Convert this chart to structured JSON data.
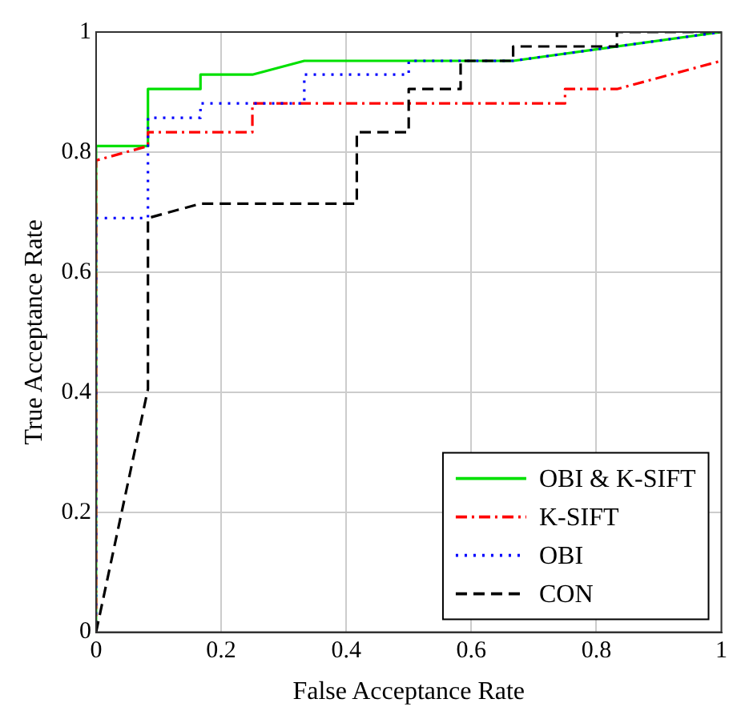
{
  "chart_data": {
    "type": "line",
    "xlabel": "False Acceptance Rate",
    "ylabel": "True Acceptance Rate",
    "xlim": [
      0,
      1
    ],
    "ylim": [
      0,
      1
    ],
    "xticks": [
      0,
      0.2,
      0.4,
      0.6,
      0.8,
      1
    ],
    "yticks": [
      0,
      0.2,
      0.4,
      0.6,
      0.8,
      1
    ],
    "grid": true,
    "legend": "bottom right",
    "marker": "none",
    "series": [
      {
        "name": "OBI & K-SIFT",
        "color": "#00e000",
        "line_style": "solid",
        "x": [
          0,
          0,
          0.083,
          0.083,
          0.167,
          0.167,
          0.25,
          0.333,
          0.667,
          1
        ],
        "values": [
          0,
          0.81,
          0.81,
          0.905,
          0.905,
          0.929,
          0.929,
          0.952,
          0.952,
          1
        ]
      },
      {
        "name": "K-SIFT",
        "color": "#ff0000",
        "line_style": "dashdot",
        "x": [
          0,
          0,
          0.083,
          0.083,
          0.25,
          0.25,
          0.75,
          0.75,
          0.833,
          1
        ],
        "values": [
          0,
          0.786,
          0.81,
          0.833,
          0.833,
          0.881,
          0.881,
          0.905,
          0.905,
          0.952
        ]
      },
      {
        "name": "OBI",
        "color": "#0000ff",
        "line_style": "dotted",
        "x": [
          0,
          0,
          0.083,
          0.083,
          0.167,
          0.167,
          0.333,
          0.333,
          0.5,
          0.5,
          0.667,
          1
        ],
        "values": [
          0,
          0.69,
          0.69,
          0.857,
          0.857,
          0.881,
          0.881,
          0.929,
          0.929,
          0.952,
          0.952,
          1
        ]
      },
      {
        "name": "CON",
        "color": "#000000",
        "line_style": "dashed",
        "x": [
          0,
          0.083,
          0.083,
          0.167,
          0.417,
          0.417,
          0.5,
          0.5,
          0.583,
          0.583,
          0.667,
          0.667,
          0.833,
          0.833,
          1
        ],
        "values": [
          0,
          0.405,
          0.69,
          0.714,
          0.714,
          0.833,
          0.833,
          0.905,
          0.905,
          0.952,
          0.952,
          0.976,
          0.976,
          1,
          1
        ]
      }
    ]
  }
}
